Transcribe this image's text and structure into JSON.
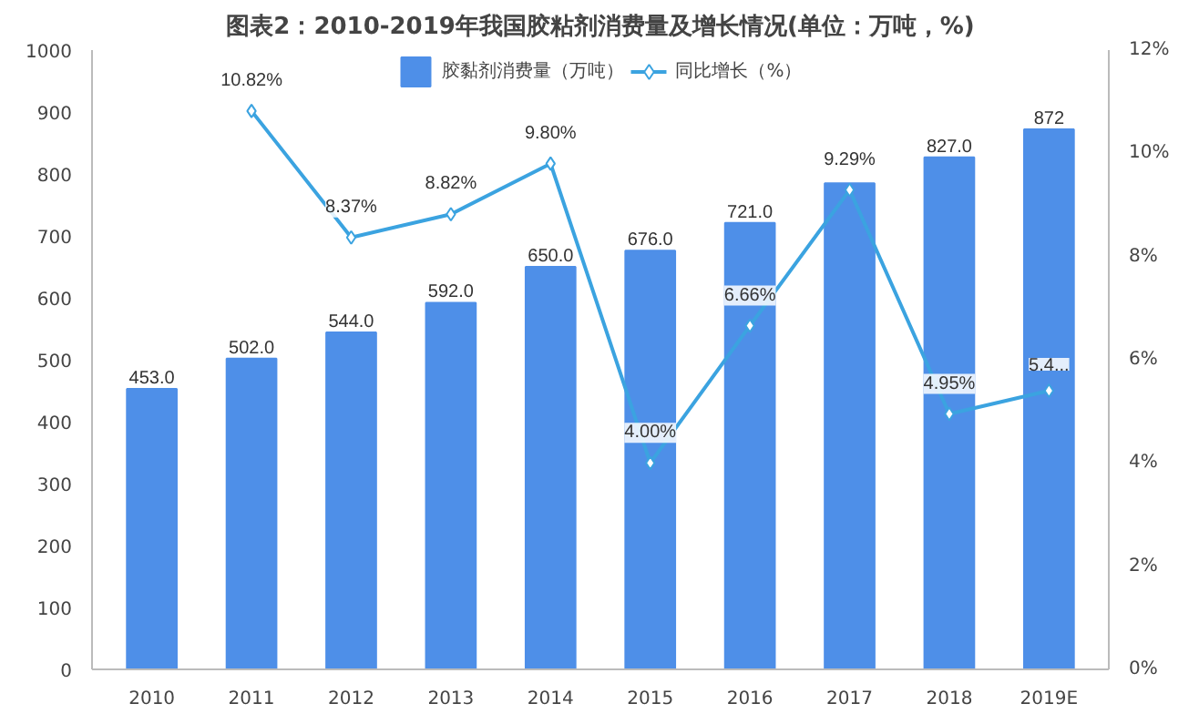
{
  "chart_data": {
    "type": "bar",
    "title": "图表2：2010-2019年我国胶粘剂消费量及增长情况(单位：万吨，%)",
    "categories": [
      "2010",
      "2011",
      "2012",
      "2013",
      "2014",
      "2015",
      "2016",
      "2017",
      "2018",
      "2019E"
    ],
    "series": [
      {
        "name": "胶黏剂消费量（万吨）",
        "color": "#4e8fe8",
        "values": [
          453,
          502,
          544,
          592,
          650,
          676,
          721,
          785,
          827,
          872
        ],
        "value_labels": [
          "453.0",
          "502.0",
          "544.0",
          "592.0",
          "650.0",
          "676.0",
          "721.0",
          null,
          "827.0",
          "872"
        ]
      },
      {
        "name": "同比增长（%）",
        "type": "line",
        "axis": "y2",
        "color": "#3ba3e0",
        "marker": "diamond",
        "values": [
          null,
          10.82,
          8.37,
          8.82,
          9.8,
          4.0,
          6.66,
          9.29,
          4.95,
          5.4
        ],
        "value_labels": [
          null,
          "10.82%",
          "8.37%",
          "8.82%",
          "9.80%",
          "4.00%",
          "6.66%",
          "9.29%",
          "4.95%",
          "5.4..."
        ]
      }
    ],
    "ylim": [
      0,
      1000
    ],
    "yticks": [
      0,
      100,
      200,
      300,
      400,
      500,
      600,
      700,
      800,
      900,
      1000
    ],
    "y2lim": [
      0,
      12
    ],
    "y2ticks": [
      {
        "value": 0,
        "label": "0%"
      },
      {
        "value": 2,
        "label": "2%"
      },
      {
        "value": 4,
        "label": "4%"
      },
      {
        "value": 6,
        "label": "6%"
      },
      {
        "value": 8,
        "label": "8%"
      },
      {
        "value": 10,
        "label": "10%"
      },
      {
        "value": 12,
        "label": "12%"
      }
    ],
    "grid": false,
    "legend": "top"
  }
}
